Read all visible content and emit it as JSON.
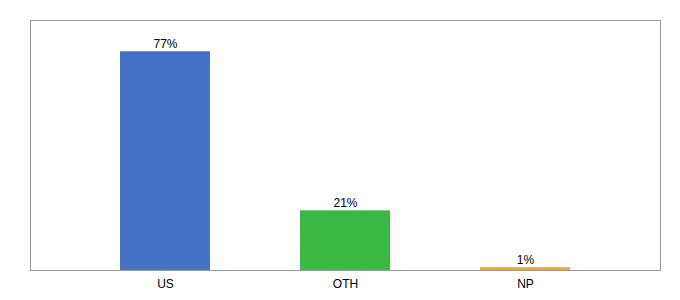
{
  "chart_data": {
    "type": "bar",
    "categories": [
      "US",
      "OTH",
      "NP"
    ],
    "values": [
      77,
      21,
      1
    ],
    "value_labels": [
      "77%",
      "21%",
      "1%"
    ],
    "colors": [
      "#4472c4",
      "#3cb844",
      "#f5a623"
    ],
    "ylim": [
      0,
      88
    ],
    "data_labels": true,
    "tick_labels": "x"
  }
}
